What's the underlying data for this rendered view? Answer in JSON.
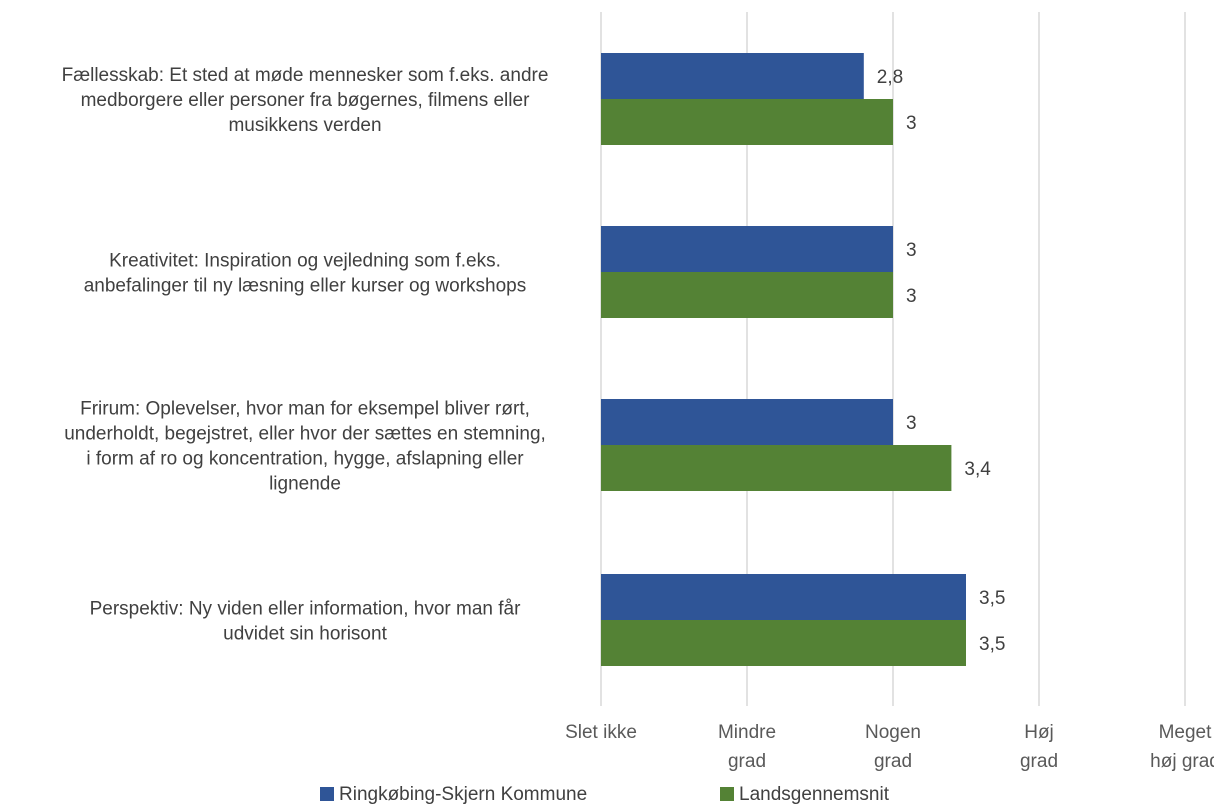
{
  "chart_data": {
    "type": "bar",
    "orientation": "horizontal",
    "categories": [
      [
        "Fællesskab: Et sted at møde mennesker som f.eks. andre",
        "medborgere eller personer fra bøgernes, filmens eller",
        "musikkens verden"
      ],
      [
        "Kreativitet: Inspiration og vejledning som f.eks.",
        "anbefalinger til ny læsning eller kurser og workshops"
      ],
      [
        "Frirum: Oplevelser, hvor man for eksempel bliver rørt,",
        "underholdt, begejstret, eller hvor der sættes en stemning,",
        "i form af ro og koncentration, hygge, afslapning eller",
        "lignende"
      ],
      [
        "Perspektiv: Ny viden eller information, hvor man får",
        "udvidet sin horisont"
      ]
    ],
    "series": [
      {
        "name": "Ringkøbing-Skjern Kommune",
        "color": "#2f5597",
        "values": [
          2.8,
          3,
          3,
          3.5
        ],
        "labels": [
          "2,8",
          "3",
          "3",
          "3,5"
        ]
      },
      {
        "name": "Landsgennemsnit",
        "color": "#548235",
        "values": [
          3,
          3,
          3.4,
          3.5
        ],
        "labels": [
          "3",
          "3",
          "3,4",
          "3,5"
        ]
      }
    ],
    "xlim": [
      1,
      5
    ],
    "x_ticks": [
      {
        "value": 1,
        "label": [
          "Slet ikke"
        ]
      },
      {
        "value": 2,
        "label": [
          "Mindre",
          "grad"
        ]
      },
      {
        "value": 3,
        "label": [
          "Nogen",
          "grad"
        ]
      },
      {
        "value": 4,
        "label": [
          "Høj",
          "grad"
        ]
      },
      {
        "value": 5,
        "label": [
          "Meget",
          "høj grad"
        ]
      }
    ],
    "grid": true,
    "legend_position": "bottom"
  }
}
